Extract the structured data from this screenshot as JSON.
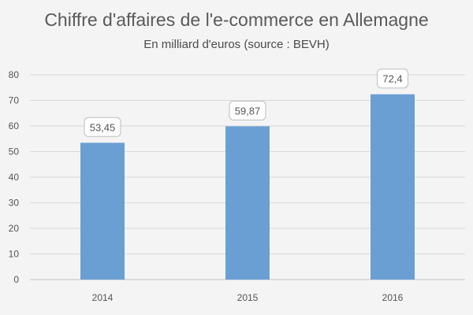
{
  "chart_data": {
    "type": "bar",
    "title": "Chiffre d'affaires de l'e-commerce en Allemagne",
    "subtitle": "En milliard d'euros (source : BEVH)",
    "categories": [
      "2014",
      "2015",
      "2016"
    ],
    "values": [
      53.45,
      59.87,
      72.4
    ],
    "data_labels": [
      "53,45",
      "59,87",
      "72,4"
    ],
    "xlabel": "",
    "ylabel": "",
    "ylim": [
      0,
      80
    ],
    "yticks": [
      0,
      10,
      20,
      30,
      40,
      50,
      60,
      70,
      80
    ],
    "grid": true,
    "legend": "none",
    "bar_color": "#6a9fd4",
    "label_box_border": "#bdbdbd"
  }
}
